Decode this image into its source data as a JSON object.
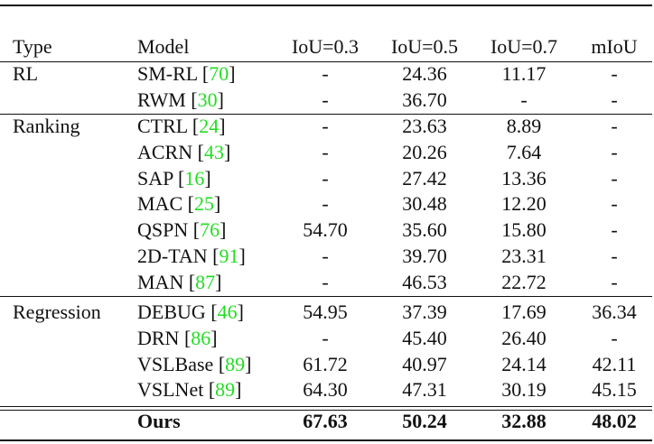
{
  "table": {
    "header": [
      "Type",
      "Model",
      "IoU=0.3",
      "IoU=0.5",
      "IoU=0.7",
      "mIoU"
    ],
    "groups": [
      {
        "type": "RL",
        "rows": [
          [
            "SM-RL [70]",
            "-",
            "24.36",
            "11.17",
            "-"
          ],
          [
            "RWM [30]",
            "-",
            "36.70",
            "-",
            "-"
          ]
        ]
      },
      {
        "type": "Ranking",
        "rows": [
          [
            "CTRL [24]",
            "-",
            "23.63",
            "8.89",
            "-"
          ],
          [
            "ACRN [43]",
            "-",
            "20.26",
            "7.64",
            "-"
          ],
          [
            "SAP [16]",
            "-",
            "27.42",
            "13.36",
            "-"
          ],
          [
            "MAC [25]",
            "-",
            "30.48",
            "12.20",
            "-"
          ],
          [
            "QSPN [76]",
            "54.70",
            "35.60",
            "15.80",
            "-"
          ],
          [
            "2D-TAN [91]",
            "-",
            "39.70",
            "23.31",
            "-"
          ],
          [
            "MAN [87]",
            "-",
            "46.53",
            "22.72",
            "-"
          ]
        ]
      },
      {
        "type": "Regression",
        "rows": [
          [
            "DEBUG [46]",
            "54.95",
            "37.39",
            "17.69",
            "36.34"
          ],
          [
            "DRN [86]",
            "-",
            "45.40",
            "26.40",
            "-"
          ],
          [
            "VSLBase [89]",
            "61.72",
            "40.97",
            "24.14",
            "42.11"
          ],
          [
            "VSLNet [89]",
            "64.30",
            "47.31",
            "30.19",
            "45.15"
          ]
        ]
      }
    ],
    "ours": [
      "Ours",
      "67.63",
      "50.24",
      "32.88",
      "48.02"
    ]
  }
}
